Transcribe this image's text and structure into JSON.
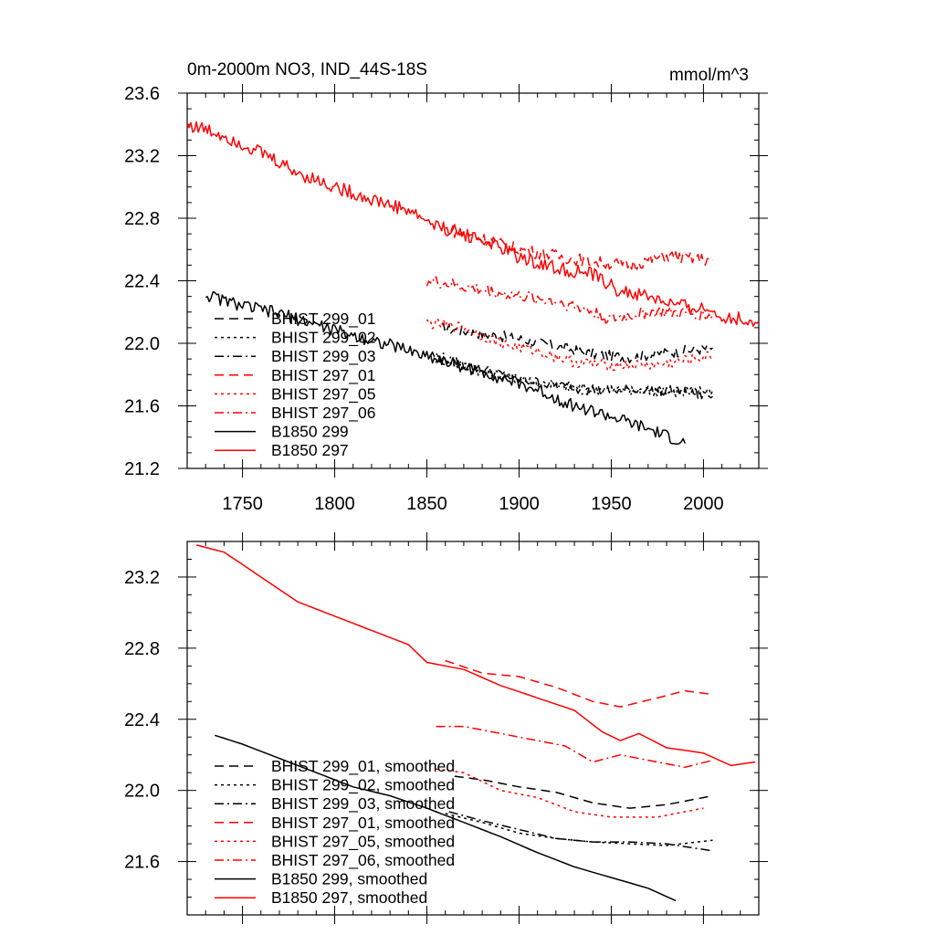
{
  "figure": {
    "title_left": "0m-2000m NO3, IND_44S-18S",
    "title_right": "mmol/m^3"
  },
  "styles": {
    "black": "#000000",
    "red": "#ff0000",
    "dash_patterns": {
      "solid": "",
      "dash": "10,6",
      "dot": "3,4",
      "dashdot": "10,4,2,4"
    }
  },
  "chart_data": [
    {
      "type": "line",
      "name": "top",
      "title": "0m-2000m NO3, IND_44S-18S",
      "units": "mmol/m^3",
      "xlim": [
        1720,
        2030
      ],
      "ylim": [
        21.2,
        23.6
      ],
      "xticks": [
        1750,
        1800,
        1850,
        1900,
        1950,
        2000
      ],
      "yticks": [
        21.2,
        21.6,
        22.0,
        22.4,
        22.8,
        23.2,
        23.6
      ],
      "legend_position": "lower-left",
      "series": [
        {
          "name": "BHIST 299_01",
          "color": "#000000",
          "dash": "dash",
          "noise": 0.035,
          "points": [
            [
              1858,
              22.1
            ],
            [
              1880,
              22.06
            ],
            [
              1900,
              22.03
            ],
            [
              1920,
              21.98
            ],
            [
              1940,
              21.93
            ],
            [
              1960,
              21.91
            ],
            [
              1980,
              21.94
            ],
            [
              2005,
              21.97
            ]
          ]
        },
        {
          "name": "BHIST 299_02",
          "color": "#000000",
          "dash": "dot",
          "noise": 0.035,
          "points": [
            [
              1855,
              21.9
            ],
            [
              1880,
              21.82
            ],
            [
              1900,
              21.77
            ],
            [
              1920,
              21.73
            ],
            [
              1940,
              21.71
            ],
            [
              1960,
              21.7
            ],
            [
              1980,
              21.69
            ],
            [
              2005,
              21.7
            ]
          ]
        },
        {
          "name": "BHIST 299_03",
          "color": "#000000",
          "dash": "dashdot",
          "noise": 0.035,
          "points": [
            [
              1852,
              21.93
            ],
            [
              1880,
              21.83
            ],
            [
              1900,
              21.77
            ],
            [
              1920,
              21.73
            ],
            [
              1940,
              21.7
            ],
            [
              1960,
              21.7
            ],
            [
              1980,
              21.7
            ],
            [
              2005,
              21.66
            ]
          ]
        },
        {
          "name": "BHIST 297_01",
          "color": "#ff0000",
          "dash": "dash",
          "noise": 0.04,
          "points": [
            [
              1860,
              22.73
            ],
            [
              1880,
              22.67
            ],
            [
              1900,
              22.6
            ],
            [
              1920,
              22.56
            ],
            [
              1940,
              22.52
            ],
            [
              1960,
              22.5
            ],
            [
              1980,
              22.56
            ],
            [
              2005,
              22.53
            ]
          ]
        },
        {
          "name": "BHIST 297_05",
          "color": "#ff0000",
          "dash": "dot",
          "noise": 0.035,
          "points": [
            [
              1850,
              22.13
            ],
            [
              1870,
              22.1
            ],
            [
              1890,
              22.0
            ],
            [
              1910,
              21.95
            ],
            [
              1930,
              21.88
            ],
            [
              1950,
              21.86
            ],
            [
              1975,
              21.86
            ],
            [
              2005,
              21.92
            ]
          ]
        },
        {
          "name": "BHIST 297_06",
          "color": "#ff0000",
          "dash": "dashdot",
          "noise": 0.04,
          "points": [
            [
              1850,
              22.4
            ],
            [
              1870,
              22.36
            ],
            [
              1900,
              22.3
            ],
            [
              1920,
              22.27
            ],
            [
              1935,
              22.22
            ],
            [
              1950,
              22.15
            ],
            [
              1970,
              22.2
            ],
            [
              2005,
              22.18
            ]
          ]
        },
        {
          "name": "B1850 299",
          "color": "#000000",
          "dash": "solid",
          "noise": 0.04,
          "points": [
            [
              1730,
              22.31
            ],
            [
              1750,
              22.24
            ],
            [
              1770,
              22.19
            ],
            [
              1790,
              22.12
            ],
            [
              1810,
              22.05
            ],
            [
              1830,
              21.99
            ],
            [
              1850,
              21.92
            ],
            [
              1870,
              21.85
            ],
            [
              1890,
              21.78
            ],
            [
              1910,
              21.7
            ],
            [
              1930,
              21.6
            ],
            [
              1950,
              21.53
            ],
            [
              1970,
              21.45
            ],
            [
              1990,
              21.36
            ]
          ]
        },
        {
          "name": "B1850 297",
          "color": "#ff0000",
          "dash": "solid",
          "noise": 0.045,
          "points": [
            [
              1720,
              23.4
            ],
            [
              1740,
              23.33
            ],
            [
              1760,
              23.22
            ],
            [
              1780,
              23.09
            ],
            [
              1800,
              23.0
            ],
            [
              1820,
              22.92
            ],
            [
              1840,
              22.85
            ],
            [
              1855,
              22.75
            ],
            [
              1870,
              22.7
            ],
            [
              1885,
              22.64
            ],
            [
              1900,
              22.55
            ],
            [
              1920,
              22.48
            ],
            [
              1940,
              22.44
            ],
            [
              1955,
              22.33
            ],
            [
              1970,
              22.3
            ],
            [
              1985,
              22.24
            ],
            [
              2000,
              22.22
            ],
            [
              2015,
              22.16
            ],
            [
              2030,
              22.14
            ]
          ]
        }
      ]
    },
    {
      "type": "line",
      "name": "bottom",
      "xlim": [
        1720,
        2030
      ],
      "ylim": [
        21.3,
        23.4
      ],
      "xticks": [
        1750,
        1800,
        1850,
        1900,
        1950,
        2000
      ],
      "yticks": [
        21.6,
        22.0,
        22.4,
        22.8,
        23.2
      ],
      "legend_position": "lower-left",
      "series": [
        {
          "name": "BHIST 299_01, smoothed",
          "color": "#000000",
          "dash": "dash",
          "noise": 0,
          "points": [
            [
              1865,
              22.08
            ],
            [
              1880,
              22.06
            ],
            [
              1900,
              22.02
            ],
            [
              1920,
              21.99
            ],
            [
              1940,
              21.93
            ],
            [
              1960,
              21.9
            ],
            [
              1980,
              21.92
            ],
            [
              2005,
              21.97
            ]
          ]
        },
        {
          "name": "BHIST 299_02, smoothed",
          "color": "#000000",
          "dash": "dot",
          "noise": 0,
          "points": [
            [
              1860,
              21.87
            ],
            [
              1880,
              21.82
            ],
            [
              1900,
              21.76
            ],
            [
              1920,
              21.73
            ],
            [
              1940,
              21.71
            ],
            [
              1960,
              21.7
            ],
            [
              1980,
              21.69
            ],
            [
              2005,
              21.72
            ]
          ]
        },
        {
          "name": "BHIST 299_03, smoothed",
          "color": "#000000",
          "dash": "dashdot",
          "noise": 0,
          "points": [
            [
              1862,
              21.88
            ],
            [
              1880,
              21.83
            ],
            [
              1900,
              21.78
            ],
            [
              1920,
              21.73
            ],
            [
              1940,
              21.71
            ],
            [
              1960,
              21.71
            ],
            [
              1980,
              21.7
            ],
            [
              2005,
              21.66
            ]
          ]
        },
        {
          "name": "BHIST 297_01, smoothed",
          "color": "#ff0000",
          "dash": "dash",
          "noise": 0,
          "points": [
            [
              1860,
              22.73
            ],
            [
              1880,
              22.66
            ],
            [
              1900,
              22.64
            ],
            [
              1920,
              22.58
            ],
            [
              1940,
              22.5
            ],
            [
              1955,
              22.47
            ],
            [
              1975,
              22.52
            ],
            [
              1990,
              22.56
            ],
            [
              2005,
              22.54
            ]
          ]
        },
        {
          "name": "BHIST 297_05, smoothed",
          "color": "#ff0000",
          "dash": "dot",
          "noise": 0,
          "points": [
            [
              1855,
              22.12
            ],
            [
              1870,
              22.1
            ],
            [
              1890,
              22.0
            ],
            [
              1910,
              21.96
            ],
            [
              1930,
              21.88
            ],
            [
              1950,
              21.85
            ],
            [
              1975,
              21.85
            ],
            [
              2000,
              21.9
            ]
          ]
        },
        {
          "name": "BHIST 297_06, smoothed",
          "color": "#ff0000",
          "dash": "dashdot",
          "noise": 0,
          "points": [
            [
              1855,
              22.36
            ],
            [
              1870,
              22.36
            ],
            [
              1890,
              22.32
            ],
            [
              1910,
              22.28
            ],
            [
              1925,
              22.25
            ],
            [
              1940,
              22.16
            ],
            [
              1955,
              22.2
            ],
            [
              1970,
              22.17
            ],
            [
              1990,
              22.13
            ],
            [
              2005,
              22.17
            ]
          ]
        },
        {
          "name": "B1850 299, smoothed",
          "color": "#000000",
          "dash": "solid",
          "noise": 0,
          "points": [
            [
              1735,
              22.31
            ],
            [
              1750,
              22.26
            ],
            [
              1770,
              22.18
            ],
            [
              1790,
              22.1
            ],
            [
              1810,
              22.02
            ],
            [
              1830,
              21.97
            ],
            [
              1850,
              21.9
            ],
            [
              1870,
              21.82
            ],
            [
              1890,
              21.74
            ],
            [
              1910,
              21.65
            ],
            [
              1930,
              21.57
            ],
            [
              1950,
              21.51
            ],
            [
              1970,
              21.45
            ],
            [
              1985,
              21.38
            ]
          ]
        },
        {
          "name": "B1850 297, smoothed",
          "color": "#ff0000",
          "dash": "solid",
          "noise": 0,
          "points": [
            [
              1725,
              23.38
            ],
            [
              1740,
              23.34
            ],
            [
              1760,
              23.2
            ],
            [
              1780,
              23.06
            ],
            [
              1800,
              22.98
            ],
            [
              1820,
              22.9
            ],
            [
              1840,
              22.82
            ],
            [
              1850,
              22.72
            ],
            [
              1870,
              22.68
            ],
            [
              1890,
              22.59
            ],
            [
              1910,
              22.52
            ],
            [
              1930,
              22.45
            ],
            [
              1945,
              22.33
            ],
            [
              1955,
              22.28
            ],
            [
              1965,
              22.32
            ],
            [
              1980,
              22.24
            ],
            [
              2000,
              22.21
            ],
            [
              2015,
              22.14
            ],
            [
              2028,
              22.16
            ]
          ]
        }
      ]
    }
  ]
}
